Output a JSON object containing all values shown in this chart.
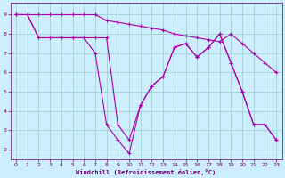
{
  "bg_color": "#cceeff",
  "grid_color": "#99cccc",
  "line_color": "#aa00aa",
  "xlabel": "Windchill (Refroidissement éolien,°C)",
  "xlabel_color": "#660066",
  "tick_color": "#660066",
  "xlim": [
    -0.5,
    23.5
  ],
  "ylim": [
    1.5,
    9.6
  ],
  "yticks": [
    2,
    3,
    4,
    5,
    6,
    7,
    8,
    9
  ],
  "xticks": [
    0,
    1,
    2,
    3,
    4,
    5,
    6,
    7,
    8,
    9,
    10,
    11,
    12,
    13,
    14,
    15,
    16,
    17,
    18,
    19,
    20,
    21,
    22,
    23
  ],
  "line1_x": [
    0,
    1,
    2,
    3,
    4,
    5,
    6,
    7,
    8,
    9,
    10,
    11,
    12,
    13,
    14,
    15,
    16,
    17,
    18,
    19,
    20,
    21,
    22,
    23
  ],
  "line1_y": [
    9,
    9,
    9,
    9,
    9,
    9,
    9,
    9,
    8.7,
    8.6,
    8.5,
    8.4,
    8.3,
    8.2,
    8.0,
    7.9,
    7.8,
    7.7,
    7.6,
    8.0,
    7.5,
    7.0,
    6.5,
    6.0
  ],
  "line2_x": [
    0,
    1,
    2,
    3,
    4,
    5,
    6,
    7,
    8,
    9,
    10,
    11,
    12,
    13,
    14,
    15,
    16,
    17,
    18,
    19,
    20,
    21,
    22,
    23
  ],
  "line2_y": [
    9,
    9,
    7.8,
    7.8,
    7.8,
    7.8,
    7.8,
    7.8,
    7.8,
    3.3,
    2.5,
    4.3,
    5.3,
    5.8,
    7.3,
    7.5,
    6.8,
    7.3,
    8.0,
    6.5,
    5.0,
    3.3,
    3.3,
    2.5
  ],
  "line3_x": [
    0,
    1,
    2,
    3,
    4,
    5,
    6,
    7,
    8,
    9,
    10,
    11,
    12,
    13,
    14,
    15,
    16,
    17,
    18,
    19,
    20,
    21,
    22,
    23
  ],
  "line3_y": [
    9,
    9,
    7.8,
    7.8,
    7.8,
    7.8,
    7.8,
    7.0,
    3.3,
    2.5,
    1.8,
    4.3,
    5.3,
    5.8,
    7.3,
    7.5,
    6.8,
    7.3,
    8.0,
    6.5,
    5.0,
    3.3,
    3.3,
    2.5
  ]
}
